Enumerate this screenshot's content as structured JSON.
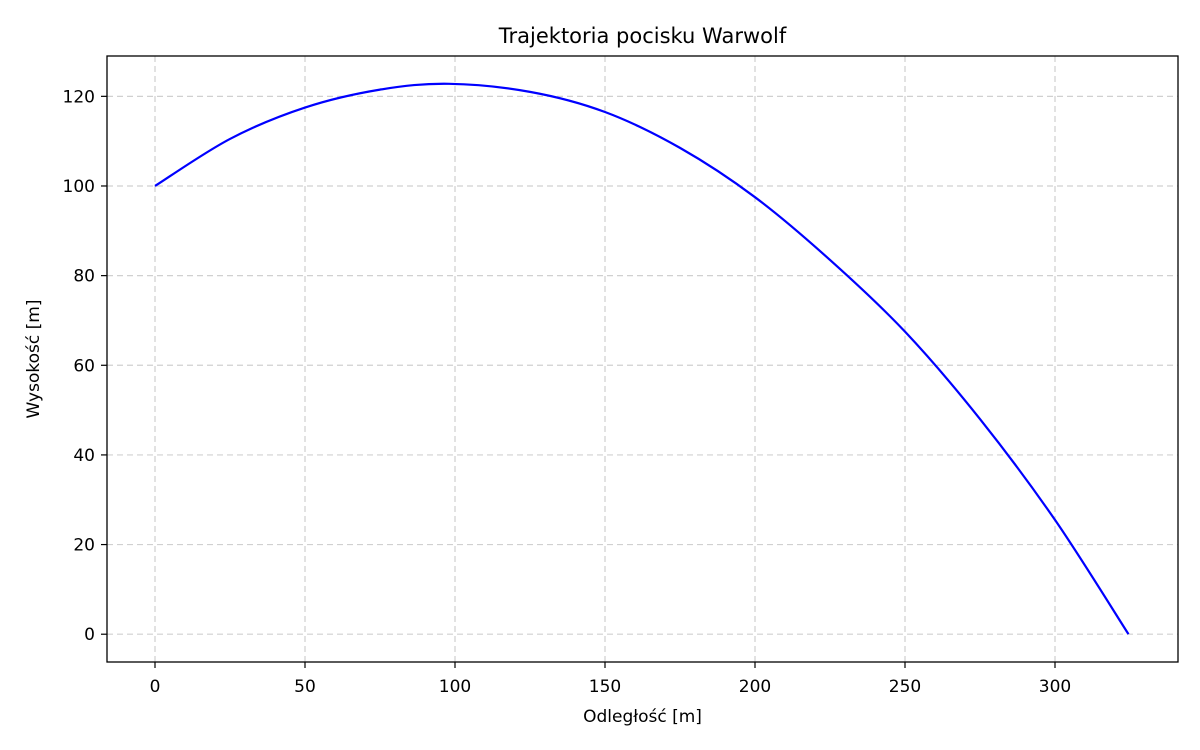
{
  "chart_data": {
    "type": "line",
    "title": "Trajektoria pocisku Warwolf",
    "xlabel": "Odległość [m]",
    "ylabel": "Wysokość [m]",
    "xlim": [
      -16,
      341
    ],
    "ylim": [
      -6.2,
      129
    ],
    "xticks": [
      0,
      50,
      100,
      150,
      200,
      250,
      300
    ],
    "yticks": [
      0,
      20,
      40,
      60,
      80,
      100,
      120
    ],
    "grid": true,
    "line_color": "#0000ff",
    "series": [
      {
        "x": [
          0,
          25,
          50,
          75,
          98,
          125,
          150,
          175,
          200,
          225,
          250,
          275,
          300,
          324.5
        ],
        "y": [
          100,
          110.5,
          117.5,
          121.5,
          122.8,
          121,
          116.5,
          108.5,
          97.5,
          83.5,
          67.5,
          48,
          25.5,
          0
        ]
      }
    ]
  }
}
